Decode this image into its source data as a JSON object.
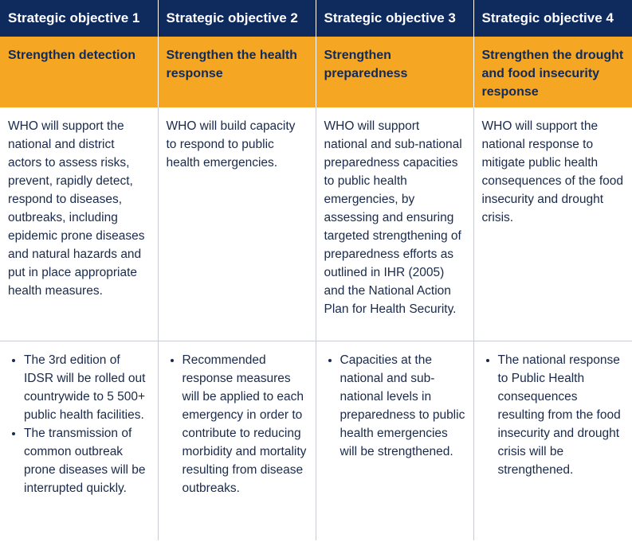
{
  "headers": [
    "Strategic objective 1",
    "Strategic objective 2",
    "Strategic objective 3",
    "Strategic objective 4"
  ],
  "goals": [
    "Strengthen detection",
    "Strengthen the health response",
    "Strengthen preparedness",
    "Strengthen the drought and food insecurity response"
  ],
  "descriptions": [
    "WHO will support the national and district actors to assess risks, prevent, rapidly detect, respond to diseases, outbreaks, including epidemic prone diseases and natural hazards and put in place appropriate health measures.",
    "WHO will build capacity to respond to public health emergencies.",
    "WHO will support national and sub-national preparedness capacities to public health emergencies, by assessing and ensuring targeted strengthening of preparedness efforts as outlined in IHR (2005) and the National Action Plan for Health Security.",
    "WHO will support the national response to mitigate public health consequences of the food insecurity and drought crisis."
  ],
  "outcomes": [
    [
      "The 3rd edition of IDSR will be rolled out countrywide to 5 500+ public health facilities.",
      "The transmission of common outbreak prone diseases will be interrupted quickly."
    ],
    [
      "Recommended response measures will be applied to each emergency in order to contribute to reducing morbidity and mortality resulting from disease outbreaks."
    ],
    [
      "Capacities at the national and sub-national levels in preparedness to public health emergencies will be strengthened."
    ],
    [
      "The national response to Public Health consequences resulting from the food insecurity and drought crisis will be strengthened."
    ]
  ],
  "colors": {
    "header_bg": "#0f2a5c",
    "goal_bg": "#f5a623",
    "text": "#1a2a4a"
  }
}
